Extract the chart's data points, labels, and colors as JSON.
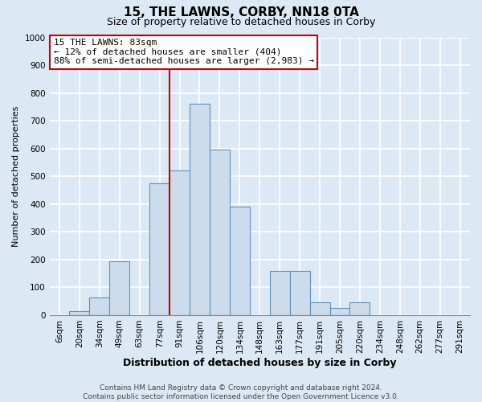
{
  "title": "15, THE LAWNS, CORBY, NN18 0TA",
  "subtitle": "Size of property relative to detached houses in Corby",
  "xlabel": "Distribution of detached houses by size in Corby",
  "ylabel": "Number of detached properties",
  "bar_labels": [
    "6sqm",
    "20sqm",
    "34sqm",
    "49sqm",
    "63sqm",
    "77sqm",
    "91sqm",
    "106sqm",
    "120sqm",
    "134sqm",
    "148sqm",
    "163sqm",
    "177sqm",
    "191sqm",
    "205sqm",
    "220sqm",
    "234sqm",
    "248sqm",
    "262sqm",
    "277sqm",
    "291sqm"
  ],
  "bar_values": [
    0,
    15,
    65,
    195,
    0,
    475,
    520,
    760,
    595,
    390,
    0,
    160,
    160,
    45,
    25,
    45,
    0,
    0,
    0,
    0,
    0
  ],
  "bar_color": "#ccdcec",
  "bar_edge_color": "#6090b8",
  "marker_label": "15 THE LAWNS: 83sqm",
  "annotation_line1": "← 12% of detached houses are smaller (404)",
  "annotation_line2": "88% of semi-detached houses are larger (2,983) →",
  "vline_color": "#cc0000",
  "vline_x_index": 5.5,
  "ylim": [
    0,
    1000
  ],
  "yticks": [
    0,
    100,
    200,
    300,
    400,
    500,
    600,
    700,
    800,
    900,
    1000
  ],
  "footer1": "Contains HM Land Registry data © Crown copyright and database right 2024.",
  "footer2": "Contains public sector information licensed under the Open Government Licence v3.0.",
  "bg_color": "#dce8f4",
  "grid_color": "#ffffff",
  "annotation_box_color": "#ffffff",
  "annotation_box_edge": "#cc0000",
  "title_fontsize": 11,
  "subtitle_fontsize": 9,
  "xlabel_fontsize": 9,
  "ylabel_fontsize": 8,
  "tick_fontsize": 7.5,
  "annotation_fontsize": 8,
  "footer_fontsize": 6.5
}
